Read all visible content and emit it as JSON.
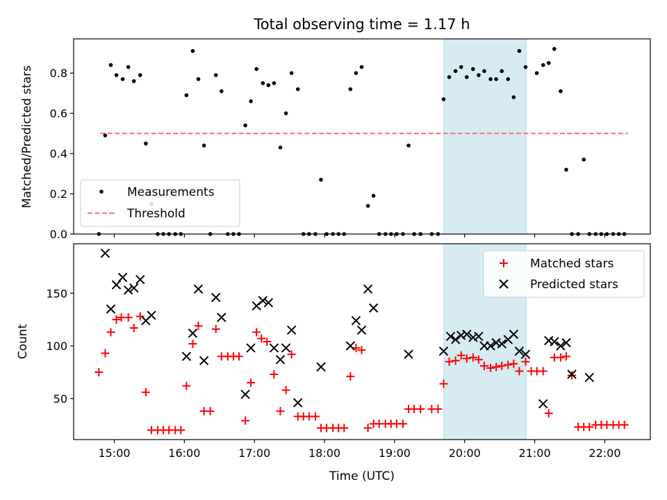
{
  "title": "Total observing time = 1.17 h",
  "colors": {
    "measurements": "#000000",
    "threshold": "#ff6f6f",
    "matched": "#ff0000",
    "predicted": "#000000",
    "highlight": "#add8e6"
  },
  "chart_data": [
    {
      "type": "scatter",
      "ylabel": "Matched/Predicted stars",
      "xlabel": "",
      "xlim_hours": [
        14.42,
        22.65
      ],
      "ylim": [
        0,
        0.97
      ],
      "yticks": [
        0.0,
        0.2,
        0.4,
        0.6,
        0.8
      ],
      "ytick_labels": [
        "0.0",
        "0.2",
        "0.4",
        "0.6",
        "0.8"
      ],
      "highlight_span_hours": [
        19.7,
        20.88
      ],
      "legend": {
        "placement": "lower-left",
        "entries": [
          "Measurements",
          "Threshold"
        ]
      },
      "threshold": {
        "name": "Threshold",
        "y": 0.5,
        "x_start": 14.8,
        "x_end": 22.33
      },
      "series": [
        {
          "name": "Measurements",
          "marker": "dot",
          "x": [
            14.78,
            14.87,
            14.95,
            15.03,
            15.12,
            15.2,
            15.28,
            15.37,
            15.45,
            15.53,
            15.62,
            15.7,
            15.78,
            15.87,
            15.95,
            16.03,
            16.12,
            16.2,
            16.28,
            16.37,
            16.45,
            16.53,
            16.62,
            16.7,
            16.78,
            16.87,
            16.95,
            17.03,
            17.12,
            17.2,
            17.28,
            17.37,
            17.45,
            17.53,
            17.62,
            17.7,
            17.78,
            17.87,
            17.95,
            18.03,
            18.12,
            18.2,
            18.28,
            18.37,
            18.45,
            18.53,
            18.62,
            18.7,
            18.78,
            18.87,
            18.95,
            19.03,
            19.12,
            19.2,
            19.28,
            19.37,
            19.53,
            19.62,
            19.7,
            19.78,
            19.87,
            19.95,
            20.03,
            20.12,
            20.2,
            20.28,
            20.37,
            20.45,
            20.53,
            20.62,
            20.7,
            20.78,
            20.87,
            21.03,
            21.12,
            21.2,
            21.28,
            21.37,
            21.45,
            21.53,
            21.62,
            21.7,
            21.78,
            21.87,
            21.95,
            22.03,
            22.12,
            22.2,
            22.28
          ],
          "y": [
            0.0,
            0.49,
            0.84,
            0.79,
            0.77,
            0.83,
            0.76,
            0.79,
            0.45,
            0.15,
            0.0,
            0.0,
            0.0,
            0.0,
            0.0,
            0.69,
            0.91,
            0.77,
            0.44,
            0.0,
            0.79,
            0.71,
            0.0,
            0.0,
            0.0,
            0.54,
            0.66,
            0.82,
            0.75,
            0.74,
            0.75,
            0.43,
            0.6,
            0.8,
            0.72,
            0.0,
            0.0,
            0.0,
            0.27,
            0.0,
            0.0,
            0.0,
            0.0,
            0.72,
            0.8,
            0.83,
            0.14,
            0.19,
            0.0,
            0.0,
            0.0,
            0.0,
            0.0,
            0.44,
            0.0,
            0.0,
            0.0,
            0.0,
            0.67,
            0.78,
            0.81,
            0.83,
            0.78,
            0.82,
            0.79,
            0.81,
            0.77,
            0.77,
            0.81,
            0.77,
            0.68,
            0.91,
            0.83,
            0.8,
            0.84,
            0.85,
            0.92,
            0.71,
            0.32,
            0.0,
            0.0,
            0.37,
            0.0,
            0.0,
            0.0,
            0.0,
            0.0,
            0.0,
            0.0
          ]
        }
      ]
    },
    {
      "type": "scatter",
      "ylabel": "Count",
      "xlabel": "Time (UTC)",
      "xlim_hours": [
        14.42,
        22.65
      ],
      "ylim": [
        11,
        197
      ],
      "yticks": [
        50,
        100,
        150
      ],
      "ytick_labels": [
        "50",
        "100",
        "150"
      ],
      "xticks_hours": [
        15,
        16,
        17,
        18,
        19,
        20,
        21,
        22
      ],
      "xtick_labels": [
        "15:00",
        "16:00",
        "17:00",
        "18:00",
        "19:00",
        "20:00",
        "21:00",
        "22:00"
      ],
      "highlight_span_hours": [
        19.7,
        20.88
      ],
      "legend": {
        "placement": "top-right",
        "entries": [
          "Matched stars",
          "Predicted stars"
        ]
      },
      "series": [
        {
          "name": "Matched stars",
          "marker": "plus",
          "x": [
            14.78,
            14.87,
            14.95,
            15.03,
            15.1,
            15.2,
            15.28,
            15.37,
            15.45,
            15.53,
            15.62,
            15.7,
            15.78,
            15.87,
            15.95,
            16.03,
            16.12,
            16.2,
            16.28,
            16.37,
            16.45,
            16.53,
            16.62,
            16.7,
            16.78,
            16.87,
            16.95,
            17.03,
            17.1,
            17.18,
            17.28,
            17.37,
            17.45,
            17.53,
            17.62,
            17.7,
            17.78,
            17.87,
            17.95,
            18.03,
            18.12,
            18.2,
            18.28,
            18.37,
            18.45,
            18.53,
            18.62,
            18.7,
            18.78,
            18.87,
            18.95,
            19.03,
            19.12,
            19.2,
            19.28,
            19.37,
            19.53,
            19.62,
            19.7,
            19.78,
            19.87,
            19.95,
            20.03,
            20.12,
            20.2,
            20.28,
            20.37,
            20.45,
            20.53,
            20.62,
            20.7,
            20.78,
            20.87,
            20.95,
            21.03,
            21.12,
            21.2,
            21.28,
            21.37,
            21.45,
            21.53,
            21.62,
            21.7,
            21.78,
            21.87,
            21.95,
            22.03,
            22.12,
            22.2,
            22.28
          ],
          "y": [
            75,
            93,
            113,
            125,
            127,
            127,
            117,
            128,
            56,
            20,
            20,
            20,
            20,
            20,
            20,
            62,
            102,
            119,
            38,
            38,
            116,
            90,
            90,
            90,
            90,
            29,
            65,
            113,
            107,
            104,
            73,
            38,
            58,
            92,
            33,
            33,
            33,
            33,
            22,
            22,
            22,
            22,
            22,
            71,
            98,
            96,
            22,
            26,
            26,
            26,
            26,
            26,
            26,
            40,
            40,
            40,
            40,
            40,
            64,
            85,
            86,
            91,
            88,
            89,
            87,
            81,
            79,
            80,
            81,
            82,
            83,
            76,
            85,
            76,
            76,
            76,
            36,
            89,
            89,
            90,
            72,
            23,
            23,
            23,
            25,
            25,
            25,
            25,
            25,
            25
          ],
          "color_key": "matched"
        },
        {
          "name": "Predicted stars",
          "marker": "x",
          "x": [
            14.87,
            14.95,
            15.03,
            15.12,
            15.2,
            15.28,
            15.37,
            15.45,
            15.53,
            16.03,
            16.12,
            16.2,
            16.28,
            16.45,
            16.53,
            16.87,
            16.95,
            17.03,
            17.12,
            17.2,
            17.28,
            17.37,
            17.45,
            17.53,
            17.62,
            17.95,
            18.37,
            18.45,
            18.53,
            18.62,
            18.7,
            19.2,
            19.7,
            19.8,
            19.87,
            19.95,
            20.03,
            20.12,
            20.2,
            20.28,
            20.37,
            20.45,
            20.53,
            20.62,
            20.7,
            20.78,
            20.87,
            21.12,
            21.2,
            21.28,
            21.37,
            21.45,
            21.53,
            21.78
          ],
          "y": [
            188,
            135,
            158,
            165,
            153,
            155,
            163,
            124,
            129,
            90,
            112,
            154,
            86,
            146,
            127,
            54,
            98,
            138,
            143,
            141,
            98,
            87,
            98,
            115,
            46,
            80,
            100,
            124,
            115,
            154,
            136,
            92,
            95,
            109,
            106,
            110,
            111,
            108,
            109,
            100,
            100,
            103,
            102,
            106,
            111,
            95,
            92,
            45,
            105,
            104,
            100,
            103,
            73,
            70
          ],
          "color_key": "predicted"
        }
      ]
    }
  ]
}
